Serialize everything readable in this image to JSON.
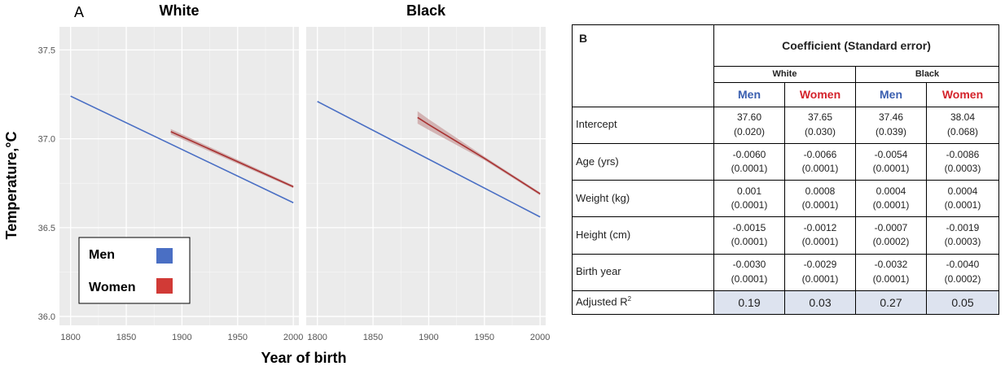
{
  "panel_a": {
    "letter": "A",
    "ylabel": "Temperature,°C",
    "xlabel": "Year of birth",
    "legend": [
      {
        "label": "Men",
        "color": "#4a6fc4"
      },
      {
        "label": "Women",
        "color": "#d13a36"
      }
    ]
  },
  "chart_data": {
    "type": "line",
    "facets": [
      "White",
      "Black"
    ],
    "xlabel": "Year of birth",
    "ylabel": "Temperature,°C",
    "xlim": [
      1790,
      2005
    ],
    "ylim": [
      35.95,
      37.63
    ],
    "xticks": [
      1800,
      1850,
      1900,
      1950,
      2000
    ],
    "yticks": [
      36.0,
      36.5,
      37.0,
      37.5
    ],
    "ytick_labels": [
      "36.0",
      "36.5",
      "37.0",
      "37.5"
    ],
    "grid": true,
    "legend_position": "bottom-left",
    "panels": [
      {
        "facet": "White",
        "series": [
          {
            "name": "Men",
            "color": "#4a6fc4",
            "x": [
              1800,
              2000
            ],
            "y": [
              37.24,
              36.64
            ]
          },
          {
            "name": "Women",
            "color": "#a83232",
            "x": [
              1890,
              2000
            ],
            "y": [
              37.04,
              36.73
            ],
            "ci_halfwidth": [
              0.015,
              0.008
            ]
          }
        ]
      },
      {
        "facet": "Black",
        "series": [
          {
            "name": "Men",
            "color": "#4a6fc4",
            "x": [
              1800,
              2000
            ],
            "y": [
              37.21,
              36.56
            ]
          },
          {
            "name": "Women",
            "color": "#a83232",
            "x": [
              1890,
              1900,
              1950,
              2000
            ],
            "y": [
              37.12,
              37.08,
              36.89,
              36.69
            ],
            "ci_halfwidth": [
              0.035,
              0.03,
              0.01,
              0.008
            ]
          }
        ]
      }
    ]
  },
  "panel_b": {
    "letter": "B",
    "title": "Coefficient (Standard error)",
    "groups": [
      "White",
      "Black"
    ],
    "sexes": [
      "Men",
      "Women",
      "Men",
      "Women"
    ],
    "rows": [
      {
        "label": "Intercept",
        "cells": [
          [
            "37.60",
            "(0.020)"
          ],
          [
            "37.65",
            "(0.030)"
          ],
          [
            "37.46",
            "(0.039)"
          ],
          [
            "38.04",
            "(0.068)"
          ]
        ]
      },
      {
        "label": "Age (yrs)",
        "cells": [
          [
            "-0.0060",
            "(0.0001)"
          ],
          [
            "-0.0066",
            "(0.0001)"
          ],
          [
            "-0.0054",
            "(0.0001)"
          ],
          [
            "-0.0086",
            "(0.0003)"
          ]
        ]
      },
      {
        "label": "Weight (kg)",
        "cells": [
          [
            "0.001",
            "(0.0001)"
          ],
          [
            "0.0008",
            "(0.0001)"
          ],
          [
            "0.0004",
            "(0.0001)"
          ],
          [
            "0.0004",
            "(0.0001)"
          ]
        ]
      },
      {
        "label": "Height (cm)",
        "cells": [
          [
            "-0.0015",
            "(0.0001)"
          ],
          [
            "-0.0012",
            "(0.0001)"
          ],
          [
            "-0.0007",
            "(0.0002)"
          ],
          [
            "-0.0019",
            "(0.0003)"
          ]
        ]
      },
      {
        "label": "Birth year",
        "cells": [
          [
            "-0.0030",
            "(0.0001)"
          ],
          [
            "-0.0029",
            "(0.0001)"
          ],
          [
            "-0.0032",
            "(0.0001)"
          ],
          [
            "-0.0040",
            "(0.0002)"
          ]
        ]
      }
    ],
    "r2_label": "Adjusted R",
    "r2_sup": "2",
    "r2_values": [
      "0.19",
      "0.03",
      "0.27",
      "0.05"
    ]
  }
}
